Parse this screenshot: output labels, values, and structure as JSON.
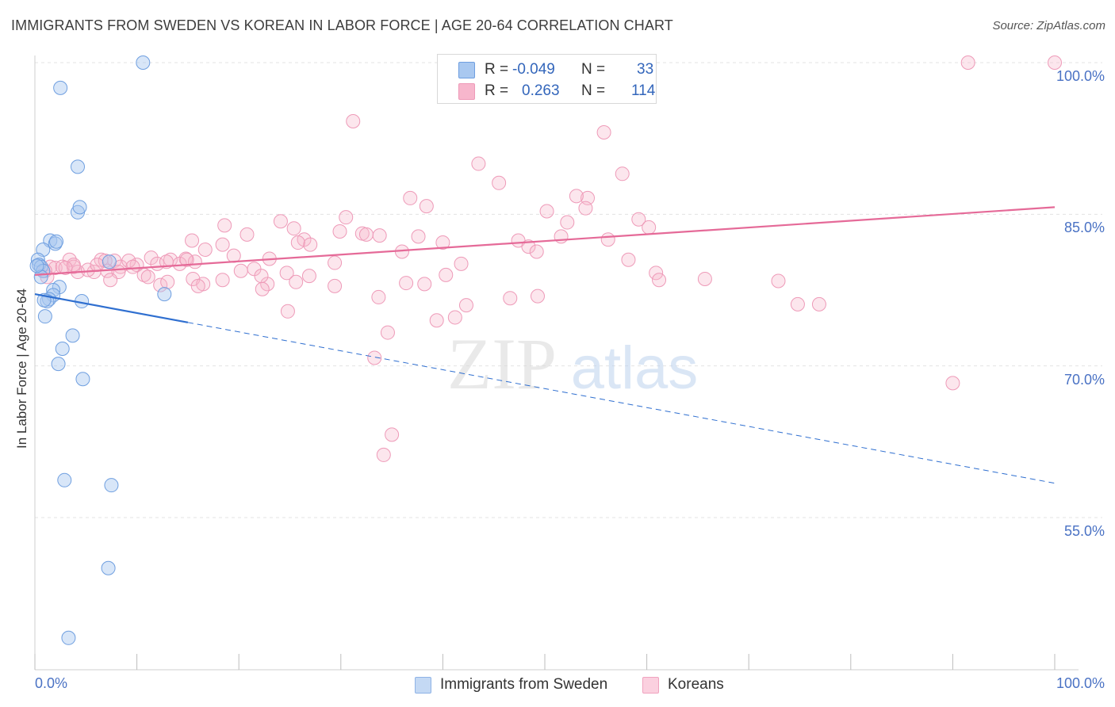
{
  "title": "IMMIGRANTS FROM SWEDEN VS KOREAN IN LABOR FORCE | AGE 20-64 CORRELATION CHART",
  "source": "Source: ZipAtlas.com",
  "watermark": {
    "zip": "ZIP",
    "atlas": "atlas"
  },
  "legend": {
    "rows": [
      {
        "r_label": "R =",
        "r_value": "-0.049",
        "n_label": "N =",
        "n_value": "33",
        "color": "#a9c8f0"
      },
      {
        "r_label": "R =",
        "r_value": "0.263",
        "n_label": "N =",
        "n_value": "114",
        "color": "#f7b6cc"
      }
    ]
  },
  "bottom_legend": [
    {
      "label": "Immigrants from Sweden",
      "color": "#a9c8f0"
    },
    {
      "label": "Koreans",
      "color": "#f7b6cc"
    }
  ],
  "colors": {
    "sweden_fill": "rgba(169,200,240,0.45)",
    "sweden_stroke": "#6f9fe0",
    "sweden_line": "#2f6fd0",
    "korean_fill": "rgba(247,182,204,0.35)",
    "korean_stroke": "#ee9ab8",
    "korean_line": "#e56a98",
    "tick_text": "#4a72c4",
    "grid": "#e3e3e3"
  },
  "chart_data": {
    "type": "scatter",
    "title": "IMMIGRANTS FROM SWEDEN VS KOREAN IN LABOR FORCE | AGE 20-64 CORRELATION CHART",
    "xlabel": "",
    "ylabel": "In Labor Force | Age 20-64",
    "xlim": [
      0,
      100
    ],
    "ylim": [
      40,
      101.5
    ],
    "x_tick_labels": [
      "0.0%",
      "100.0%"
    ],
    "y_ticks": [
      55,
      70,
      85,
      100
    ],
    "y_tick_labels": [
      "55.0%",
      "70.0%",
      "85.0%",
      "100.0%"
    ],
    "grid": true,
    "legend_position": "top-center",
    "series": [
      {
        "name": "Immigrants from Sweden",
        "r": -0.049,
        "n": 33,
        "trend": {
          "x0": 0,
          "y0": 77.1,
          "x1": 15,
          "y1": 74.3,
          "x_end": 100,
          "y_end": 58.4
        },
        "points": [
          [
            10.6,
            100.0
          ],
          [
            2.5,
            97.5
          ],
          [
            4.2,
            89.7
          ],
          [
            4.2,
            85.2
          ],
          [
            4.4,
            85.7
          ],
          [
            1.5,
            82.4
          ],
          [
            2.0,
            82.1
          ],
          [
            2.1,
            82.3
          ],
          [
            0.8,
            81.5
          ],
          [
            0.3,
            80.5
          ],
          [
            0.4,
            80.0
          ],
          [
            0.6,
            79.8
          ],
          [
            0.8,
            79.4
          ],
          [
            0.6,
            78.8
          ],
          [
            7.3,
            80.3
          ],
          [
            2.4,
            77.8
          ],
          [
            1.8,
            77.5
          ],
          [
            1.8,
            77.0
          ],
          [
            1.4,
            76.6
          ],
          [
            1.2,
            76.4
          ],
          [
            0.9,
            76.5
          ],
          [
            12.7,
            77.1
          ],
          [
            4.6,
            76.4
          ],
          [
            1.0,
            74.9
          ],
          [
            3.7,
            73.0
          ],
          [
            2.7,
            71.7
          ],
          [
            2.3,
            70.2
          ],
          [
            4.7,
            68.7
          ],
          [
            2.9,
            58.7
          ],
          [
            7.5,
            58.2
          ],
          [
            7.2,
            50.0
          ],
          [
            3.3,
            43.1
          ],
          [
            0.2,
            79.9
          ]
        ]
      },
      {
        "name": "Koreans",
        "r": 0.263,
        "n": 114,
        "trend": {
          "x0": 0,
          "y0": 79.0,
          "x1": 100,
          "y1": 85.7
        },
        "points": [
          [
            40.8,
            100.0
          ],
          [
            91.5,
            100.0
          ],
          [
            100.0,
            100.0
          ],
          [
            31.2,
            94.2
          ],
          [
            55.8,
            93.1
          ],
          [
            43.5,
            90.0
          ],
          [
            57.6,
            89.0
          ],
          [
            45.5,
            88.1
          ],
          [
            36.8,
            86.6
          ],
          [
            54.2,
            86.6
          ],
          [
            53.1,
            86.8
          ],
          [
            38.4,
            85.8
          ],
          [
            54.0,
            85.6
          ],
          [
            50.2,
            85.3
          ],
          [
            30.5,
            84.7
          ],
          [
            59.2,
            84.5
          ],
          [
            24.1,
            84.3
          ],
          [
            60.2,
            83.7
          ],
          [
            18.6,
            83.9
          ],
          [
            52.2,
            84.2
          ],
          [
            51.6,
            82.8
          ],
          [
            29.9,
            83.3
          ],
          [
            20.8,
            83.0
          ],
          [
            33.8,
            82.9
          ],
          [
            32.1,
            83.1
          ],
          [
            25.4,
            83.6
          ],
          [
            32.5,
            83.0
          ],
          [
            37.6,
            82.8
          ],
          [
            47.4,
            82.4
          ],
          [
            15.4,
            82.4
          ],
          [
            26.4,
            82.5
          ],
          [
            40.0,
            82.2
          ],
          [
            27.0,
            82.0
          ],
          [
            18.4,
            82.0
          ],
          [
            25.8,
            82.2
          ],
          [
            48.4,
            81.8
          ],
          [
            16.7,
            81.5
          ],
          [
            49.2,
            81.3
          ],
          [
            36.0,
            81.3
          ],
          [
            56.2,
            82.5
          ],
          [
            58.2,
            80.5
          ],
          [
            19.5,
            80.9
          ],
          [
            11.4,
            80.7
          ],
          [
            13.3,
            80.5
          ],
          [
            14.8,
            80.6
          ],
          [
            23.0,
            80.6
          ],
          [
            6.5,
            80.5
          ],
          [
            7.8,
            80.4
          ],
          [
            14.2,
            80.1
          ],
          [
            10.0,
            80.0
          ],
          [
            6.9,
            80.4
          ],
          [
            3.4,
            80.5
          ],
          [
            29.4,
            80.2
          ],
          [
            41.8,
            80.1
          ],
          [
            15.7,
            80.3
          ],
          [
            1.5,
            79.8
          ],
          [
            2.0,
            79.7
          ],
          [
            2.7,
            79.8
          ],
          [
            3.8,
            79.8
          ],
          [
            12.0,
            80.1
          ],
          [
            21.5,
            79.6
          ],
          [
            8.4,
            79.8
          ],
          [
            20.2,
            79.4
          ],
          [
            24.7,
            79.2
          ],
          [
            40.3,
            79.0
          ],
          [
            18.4,
            78.5
          ],
          [
            1.0,
            79.4
          ],
          [
            4.2,
            79.3
          ],
          [
            5.8,
            79.3
          ],
          [
            7.1,
            79.4
          ],
          [
            10.7,
            79.0
          ],
          [
            11.1,
            78.8
          ],
          [
            8.2,
            79.3
          ],
          [
            7.4,
            78.5
          ],
          [
            5.2,
            79.5
          ],
          [
            1.2,
            78.8
          ],
          [
            3.8,
            80.0
          ],
          [
            15.5,
            78.6
          ],
          [
            16.5,
            78.1
          ],
          [
            22.8,
            78.1
          ],
          [
            25.6,
            78.3
          ],
          [
            29.4,
            77.9
          ],
          [
            36.4,
            78.2
          ],
          [
            38.2,
            78.1
          ],
          [
            60.9,
            79.2
          ],
          [
            61.2,
            78.5
          ],
          [
            65.7,
            78.6
          ],
          [
            72.9,
            78.4
          ],
          [
            12.3,
            78.0
          ],
          [
            13.0,
            78.3
          ],
          [
            16.0,
            77.9
          ],
          [
            22.3,
            77.6
          ],
          [
            33.7,
            76.8
          ],
          [
            46.6,
            76.7
          ],
          [
            49.3,
            76.9
          ],
          [
            42.3,
            76.0
          ],
          [
            74.8,
            76.1
          ],
          [
            76.9,
            76.1
          ],
          [
            24.8,
            75.4
          ],
          [
            39.4,
            74.5
          ],
          [
            41.2,
            74.8
          ],
          [
            34.6,
            73.3
          ],
          [
            33.3,
            70.8
          ],
          [
            90.0,
            68.3
          ],
          [
            35.0,
            63.2
          ],
          [
            34.2,
            61.2
          ],
          [
            12.9,
            80.3
          ],
          [
            9.2,
            80.4
          ],
          [
            14.9,
            80.5
          ],
          [
            22.2,
            78.9
          ],
          [
            3.0,
            79.7
          ],
          [
            6.1,
            80.0
          ],
          [
            9.6,
            79.8
          ],
          [
            26.9,
            78.9
          ]
        ]
      }
    ]
  }
}
